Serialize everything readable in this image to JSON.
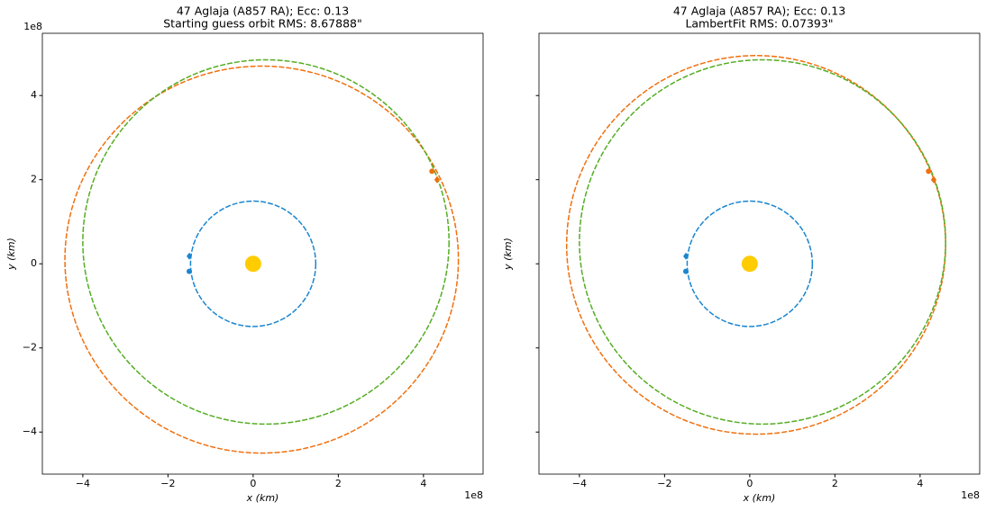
{
  "chart_data": [
    {
      "type": "orbit",
      "title": "47 Aglaja (A857 RA); Ecc: 0.13",
      "subtitle": "Starting guess orbit RMS: 8.67888\"",
      "xlabel": "x (km)",
      "ylabel": "y (km)",
      "x_offset": "1e8",
      "y_offset": "1e8",
      "ytick_labels": true,
      "xlim": [
        -4.95,
        5.4
      ],
      "ylim": [
        -5.0,
        5.48
      ],
      "xticks": [
        {
          "value": -4,
          "label": "−4"
        },
        {
          "value": -2,
          "label": "−2"
        },
        0,
        2,
        4
      ],
      "yticks": [
        {
          "value": -4,
          "label": "−4"
        },
        {
          "value": -2,
          "label": "−2"
        },
        0,
        2,
        4
      ],
      "orbits": [
        {
          "color": "#1a86cf",
          "cx": 0,
          "cy": 0,
          "rx": 1.47,
          "ry": 1.49
        },
        {
          "color": "#f0700f",
          "cx": 0.2,
          "cy": 0.1,
          "rx": 4.62,
          "ry": 4.6
        },
        {
          "color": "#55ad23",
          "cx": 0.3,
          "cy": 0.52,
          "rx": 4.3,
          "ry": 4.33
        }
      ],
      "points": [
        {
          "color": "#ffcc00",
          "marker": "circle",
          "size": 9,
          "x": 0,
          "y": 0
        },
        {
          "color": "#1a86cf",
          "marker": "diamond",
          "size": 4,
          "x": -1.5,
          "y": 0.18
        },
        {
          "color": "#1a86cf",
          "marker": "circle",
          "size": 3,
          "x": -1.5,
          "y": -0.18
        },
        {
          "color": "#55ad23",
          "marker": "diamond",
          "size": 4,
          "x": 4.32,
          "y": 2.0
        },
        {
          "color": "#f0700f",
          "marker": "circle",
          "size": 3,
          "x": 4.2,
          "y": 2.2
        },
        {
          "color": "#f0700f",
          "marker": "diamond",
          "size": 4,
          "x": 4.32,
          "y": 2.0
        }
      ]
    },
    {
      "type": "orbit",
      "title": "47 Aglaja (A857 RA); Ecc: 0.13",
      "subtitle": "LambertFit RMS: 0.07393\"",
      "xlabel": "x (km)",
      "ylabel": "y (km)",
      "x_offset": "1e8",
      "ytick_labels": false,
      "xlim": [
        -4.95,
        5.4
      ],
      "ylim": [
        -5.0,
        5.48
      ],
      "xticks": [
        {
          "value": -4,
          "label": "−4"
        },
        {
          "value": -2,
          "label": "−2"
        },
        0,
        2,
        4
      ],
      "yticks": [
        -4,
        -2,
        0,
        2,
        4
      ],
      "orbits": [
        {
          "color": "#1a86cf",
          "cx": 0,
          "cy": 0,
          "rx": 1.47,
          "ry": 1.49
        },
        {
          "color": "#f0700f",
          "cx": 0.15,
          "cy": 0.45,
          "rx": 4.45,
          "ry": 4.5
        },
        {
          "color": "#55ad23",
          "cx": 0.3,
          "cy": 0.52,
          "rx": 4.3,
          "ry": 4.33
        }
      ],
      "points": [
        {
          "color": "#ffcc00",
          "marker": "circle",
          "size": 9,
          "x": 0,
          "y": 0
        },
        {
          "color": "#1a86cf",
          "marker": "diamond",
          "size": 4,
          "x": -1.5,
          "y": 0.18
        },
        {
          "color": "#1a86cf",
          "marker": "circle",
          "size": 3,
          "x": -1.5,
          "y": -0.18
        },
        {
          "color": "#55ad23",
          "marker": "diamond",
          "size": 4,
          "x": 4.32,
          "y": 2.0
        },
        {
          "color": "#f0700f",
          "marker": "circle",
          "size": 3,
          "x": 4.2,
          "y": 2.2
        },
        {
          "color": "#f0700f",
          "marker": "diamond",
          "size": 4,
          "x": 4.32,
          "y": 2.0
        }
      ]
    }
  ]
}
